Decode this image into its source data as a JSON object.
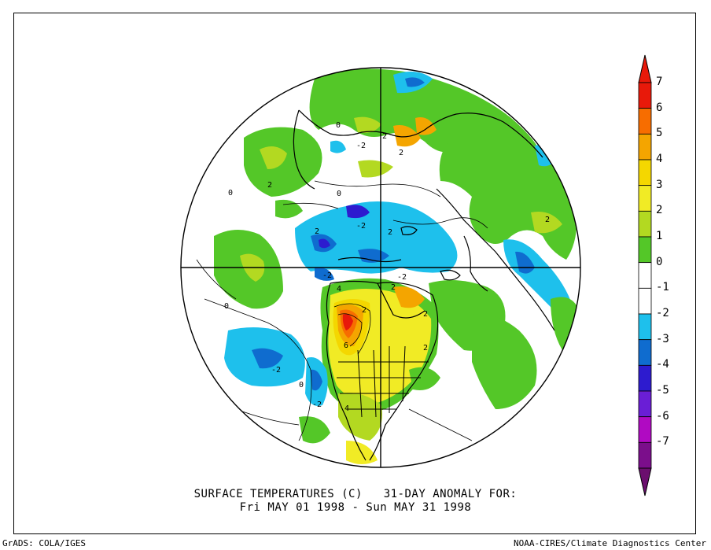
{
  "caption": {
    "line1": "SURFACE TEMPERATURES (C)   31-DAY ANOMALY FOR:",
    "line2": "Fri MAY 01 1998 - Sun MAY 31 1998"
  },
  "footer": {
    "left": "GrADS: COLA/IGES",
    "right": "NOAA-CIRES/Climate Diagnostics Center"
  },
  "colorbar": {
    "levels": [
      {
        "label": "7",
        "color": "#e8190a"
      },
      {
        "label": "6",
        "color": "#f76d00"
      },
      {
        "label": "5",
        "color": "#f4a500"
      },
      {
        "label": "4",
        "color": "#f4d700"
      },
      {
        "label": "3",
        "color": "#f1eb25"
      },
      {
        "label": "2",
        "color": "#b3d921"
      },
      {
        "label": "1",
        "color": "#54c728"
      },
      {
        "label": "0",
        "color": "#ffffff"
      },
      {
        "label": "-1",
        "color": "#ffffff"
      },
      {
        "label": "-2",
        "color": "#1ec0ec"
      },
      {
        "label": "-3",
        "color": "#0f6ccf"
      },
      {
        "label": "-4",
        "color": "#2d1bcf"
      },
      {
        "label": "-5",
        "color": "#6a1ed6"
      },
      {
        "label": "-6",
        "color": "#b00ac2"
      },
      {
        "label": "-7",
        "color": "#7b0e8b"
      }
    ],
    "top_color": "#e8190a",
    "bottom_color": "#6b0f6e"
  },
  "contour_labels": [
    "2",
    "2",
    "2",
    "2",
    "2",
    "-2",
    "-2",
    "-2",
    "-2",
    "2",
    "2",
    "2",
    "6",
    "4",
    "2",
    "2",
    "-2",
    "-2",
    "4",
    "0",
    "0",
    "0",
    "0",
    "0"
  ],
  "colors": {
    "land_outline": "#000000",
    "warm_pos": "#54c728",
    "cold_neg": "#1ec0ec"
  }
}
